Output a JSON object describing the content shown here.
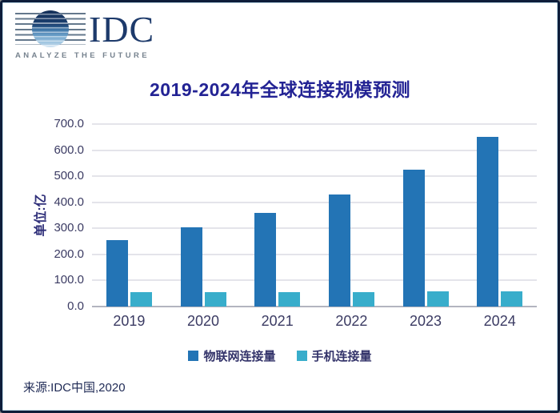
{
  "logo": {
    "name": "IDC",
    "tagline": "ANALYZE THE FUTURE"
  },
  "source": "来源:IDC中国,2020",
  "chart_data": {
    "type": "bar",
    "title": "2019-2024年全球连接规模预测",
    "xlabel": "",
    "ylabel": "单位:亿",
    "categories": [
      "2019",
      "2020",
      "2021",
      "2022",
      "2023",
      "2024"
    ],
    "series": [
      {
        "name": "物联网连接量",
        "color": "#2374B5",
        "values": [
          255,
          305,
          360,
          430,
          525,
          650
        ]
      },
      {
        "name": "手机连接量",
        "color": "#38ADCB",
        "values": [
          55,
          55,
          55,
          56,
          57,
          57
        ]
      }
    ],
    "ylim": [
      0,
      700
    ],
    "ytick_step": 100,
    "grid": true,
    "legend_position": "bottom"
  }
}
